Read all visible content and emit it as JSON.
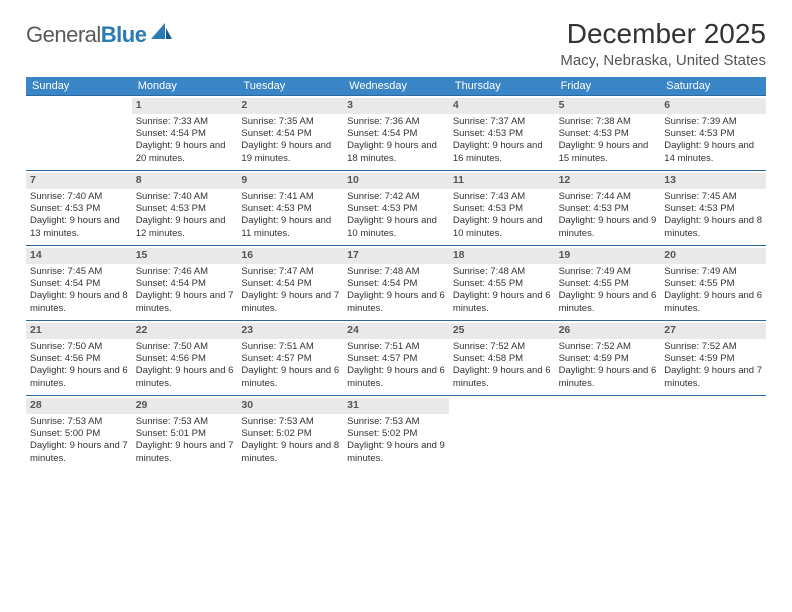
{
  "logo": {
    "text_general": "General",
    "text_blue": "Blue"
  },
  "title": "December 2025",
  "location": "Macy, Nebraska, United States",
  "colors": {
    "header_bg": "#3a85c6",
    "header_text": "#ffffff",
    "row_border": "#2a6aa0",
    "daynum_bg": "#e9e9e9",
    "body_text": "#333333",
    "logo_gray": "#5a5a5a",
    "logo_blue": "#2a7ab3"
  },
  "fonts": {
    "title_pt": 28,
    "location_pt": 15,
    "dow_pt": 11,
    "cell_pt": 9.5,
    "daynum_pt": 10.5
  },
  "days_of_week": [
    "Sunday",
    "Monday",
    "Tuesday",
    "Wednesday",
    "Thursday",
    "Friday",
    "Saturday"
  ],
  "weeks": [
    [
      {
        "n": "",
        "sr": "",
        "ss": "",
        "dl": ""
      },
      {
        "n": "1",
        "sr": "Sunrise: 7:33 AM",
        "ss": "Sunset: 4:54 PM",
        "dl": "Daylight: 9 hours and 20 minutes."
      },
      {
        "n": "2",
        "sr": "Sunrise: 7:35 AM",
        "ss": "Sunset: 4:54 PM",
        "dl": "Daylight: 9 hours and 19 minutes."
      },
      {
        "n": "3",
        "sr": "Sunrise: 7:36 AM",
        "ss": "Sunset: 4:54 PM",
        "dl": "Daylight: 9 hours and 18 minutes."
      },
      {
        "n": "4",
        "sr": "Sunrise: 7:37 AM",
        "ss": "Sunset: 4:53 PM",
        "dl": "Daylight: 9 hours and 16 minutes."
      },
      {
        "n": "5",
        "sr": "Sunrise: 7:38 AM",
        "ss": "Sunset: 4:53 PM",
        "dl": "Daylight: 9 hours and 15 minutes."
      },
      {
        "n": "6",
        "sr": "Sunrise: 7:39 AM",
        "ss": "Sunset: 4:53 PM",
        "dl": "Daylight: 9 hours and 14 minutes."
      }
    ],
    [
      {
        "n": "7",
        "sr": "Sunrise: 7:40 AM",
        "ss": "Sunset: 4:53 PM",
        "dl": "Daylight: 9 hours and 13 minutes."
      },
      {
        "n": "8",
        "sr": "Sunrise: 7:40 AM",
        "ss": "Sunset: 4:53 PM",
        "dl": "Daylight: 9 hours and 12 minutes."
      },
      {
        "n": "9",
        "sr": "Sunrise: 7:41 AM",
        "ss": "Sunset: 4:53 PM",
        "dl": "Daylight: 9 hours and 11 minutes."
      },
      {
        "n": "10",
        "sr": "Sunrise: 7:42 AM",
        "ss": "Sunset: 4:53 PM",
        "dl": "Daylight: 9 hours and 10 minutes."
      },
      {
        "n": "11",
        "sr": "Sunrise: 7:43 AM",
        "ss": "Sunset: 4:53 PM",
        "dl": "Daylight: 9 hours and 10 minutes."
      },
      {
        "n": "12",
        "sr": "Sunrise: 7:44 AM",
        "ss": "Sunset: 4:53 PM",
        "dl": "Daylight: 9 hours and 9 minutes."
      },
      {
        "n": "13",
        "sr": "Sunrise: 7:45 AM",
        "ss": "Sunset: 4:53 PM",
        "dl": "Daylight: 9 hours and 8 minutes."
      }
    ],
    [
      {
        "n": "14",
        "sr": "Sunrise: 7:45 AM",
        "ss": "Sunset: 4:54 PM",
        "dl": "Daylight: 9 hours and 8 minutes."
      },
      {
        "n": "15",
        "sr": "Sunrise: 7:46 AM",
        "ss": "Sunset: 4:54 PM",
        "dl": "Daylight: 9 hours and 7 minutes."
      },
      {
        "n": "16",
        "sr": "Sunrise: 7:47 AM",
        "ss": "Sunset: 4:54 PM",
        "dl": "Daylight: 9 hours and 7 minutes."
      },
      {
        "n": "17",
        "sr": "Sunrise: 7:48 AM",
        "ss": "Sunset: 4:54 PM",
        "dl": "Daylight: 9 hours and 6 minutes."
      },
      {
        "n": "18",
        "sr": "Sunrise: 7:48 AM",
        "ss": "Sunset: 4:55 PM",
        "dl": "Daylight: 9 hours and 6 minutes."
      },
      {
        "n": "19",
        "sr": "Sunrise: 7:49 AM",
        "ss": "Sunset: 4:55 PM",
        "dl": "Daylight: 9 hours and 6 minutes."
      },
      {
        "n": "20",
        "sr": "Sunrise: 7:49 AM",
        "ss": "Sunset: 4:55 PM",
        "dl": "Daylight: 9 hours and 6 minutes."
      }
    ],
    [
      {
        "n": "21",
        "sr": "Sunrise: 7:50 AM",
        "ss": "Sunset: 4:56 PM",
        "dl": "Daylight: 9 hours and 6 minutes."
      },
      {
        "n": "22",
        "sr": "Sunrise: 7:50 AM",
        "ss": "Sunset: 4:56 PM",
        "dl": "Daylight: 9 hours and 6 minutes."
      },
      {
        "n": "23",
        "sr": "Sunrise: 7:51 AM",
        "ss": "Sunset: 4:57 PM",
        "dl": "Daylight: 9 hours and 6 minutes."
      },
      {
        "n": "24",
        "sr": "Sunrise: 7:51 AM",
        "ss": "Sunset: 4:57 PM",
        "dl": "Daylight: 9 hours and 6 minutes."
      },
      {
        "n": "25",
        "sr": "Sunrise: 7:52 AM",
        "ss": "Sunset: 4:58 PM",
        "dl": "Daylight: 9 hours and 6 minutes."
      },
      {
        "n": "26",
        "sr": "Sunrise: 7:52 AM",
        "ss": "Sunset: 4:59 PM",
        "dl": "Daylight: 9 hours and 6 minutes."
      },
      {
        "n": "27",
        "sr": "Sunrise: 7:52 AM",
        "ss": "Sunset: 4:59 PM",
        "dl": "Daylight: 9 hours and 7 minutes."
      }
    ],
    [
      {
        "n": "28",
        "sr": "Sunrise: 7:53 AM",
        "ss": "Sunset: 5:00 PM",
        "dl": "Daylight: 9 hours and 7 minutes."
      },
      {
        "n": "29",
        "sr": "Sunrise: 7:53 AM",
        "ss": "Sunset: 5:01 PM",
        "dl": "Daylight: 9 hours and 7 minutes."
      },
      {
        "n": "30",
        "sr": "Sunrise: 7:53 AM",
        "ss": "Sunset: 5:02 PM",
        "dl": "Daylight: 9 hours and 8 minutes."
      },
      {
        "n": "31",
        "sr": "Sunrise: 7:53 AM",
        "ss": "Sunset: 5:02 PM",
        "dl": "Daylight: 9 hours and 9 minutes."
      },
      {
        "n": "",
        "sr": "",
        "ss": "",
        "dl": ""
      },
      {
        "n": "",
        "sr": "",
        "ss": "",
        "dl": ""
      },
      {
        "n": "",
        "sr": "",
        "ss": "",
        "dl": ""
      }
    ]
  ]
}
